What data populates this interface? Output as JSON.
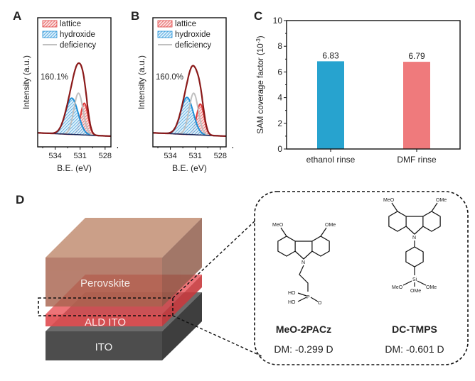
{
  "panel_labels": [
    "A",
    "B",
    "C",
    "D"
  ],
  "chart_data": [
    {
      "panel": "A",
      "type": "line",
      "xlabel": "B.E. (eV)",
      "ylabel": "Intensity (a.u.)",
      "xlim": [
        536.1,
        527.3
      ],
      "x_reversed": true,
      "ylim": [
        -0.16,
        1.55
      ],
      "xticks": [
        534,
        531,
        528
      ],
      "annotation": "160.1%",
      "legend": {
        "placement": "top-left",
        "entries": [
          "lattice",
          "hydroxide",
          "deficiency"
        ]
      },
      "components": [
        {
          "name": "lattice",
          "center": 530.5,
          "height": 0.42,
          "sigma": 0.45,
          "style": "hatched",
          "color": "#e03b3b"
        },
        {
          "name": "hydroxide",
          "center": 532.0,
          "height": 0.48,
          "sigma": 0.75,
          "style": "hatched",
          "color": "#1f8fd6"
        },
        {
          "name": "deficiency",
          "center": 531.2,
          "height": 0.55,
          "sigma": 0.55,
          "style": "line",
          "color": "#c0c0c0"
        }
      ],
      "envelope_color": "#8b1a1a",
      "baseline_color": "#1f2a5a"
    },
    {
      "panel": "B",
      "type": "line",
      "xlabel": "B.E. (eV)",
      "ylabel": "Intensity (a.u.)",
      "xlim": [
        536.1,
        527.3
      ],
      "x_reversed": true,
      "ylim": [
        -0.16,
        1.55
      ],
      "xticks": [
        534,
        531,
        528
      ],
      "annotation": "160.0%",
      "legend": {
        "placement": "top-left",
        "entries": [
          "lattice",
          "hydroxide",
          "deficiency"
        ]
      },
      "components": [
        {
          "name": "lattice",
          "center": 530.4,
          "height": 0.41,
          "sigma": 0.45,
          "style": "hatched",
          "color": "#e03b3b"
        },
        {
          "name": "hydroxide",
          "center": 532.0,
          "height": 0.49,
          "sigma": 0.75,
          "style": "hatched",
          "color": "#1f8fd6"
        },
        {
          "name": "deficiency",
          "center": 531.2,
          "height": 0.55,
          "sigma": 0.55,
          "style": "line",
          "color": "#c0c0c0"
        }
      ],
      "envelope_color": "#8b1a1a",
      "baseline_color": "#1f2a5a"
    },
    {
      "panel": "C",
      "type": "bar",
      "categories": [
        "ethanol rinse",
        "DMF rinse"
      ],
      "values": [
        6.83,
        6.79
      ],
      "data_labels": [
        "6.83",
        "6.79"
      ],
      "colors": [
        "#27a3cf",
        "#ef7a7c"
      ],
      "ylabel": "SAM coverage factor (10",
      "ylabel_sup": "-3",
      "ylabel_end": ")",
      "ylim": [
        0,
        10
      ],
      "yticks": [
        0,
        2,
        4,
        6,
        8,
        10
      ]
    }
  ],
  "diagram": {
    "layers": [
      {
        "label": "Perovskite",
        "color": "#b37357"
      },
      {
        "label": "ALD ITO",
        "color": "#e84a4f"
      },
      {
        "label": "ITO",
        "color": "#4a4a4a"
      }
    ],
    "molecules": [
      {
        "name": "MeO-2PACz",
        "dipole": "DM: -0.299 D",
        "substituents": [
          "MeO",
          "OMe",
          "N",
          "HO",
          "HO",
          "P",
          "O"
        ]
      },
      {
        "name": "DC-TMPS",
        "dipole": "DM: -0.601 D",
        "substituents": [
          "MeO",
          "OMe",
          "N",
          "Si",
          "MeO",
          "OMe",
          "OMe"
        ]
      }
    ]
  }
}
